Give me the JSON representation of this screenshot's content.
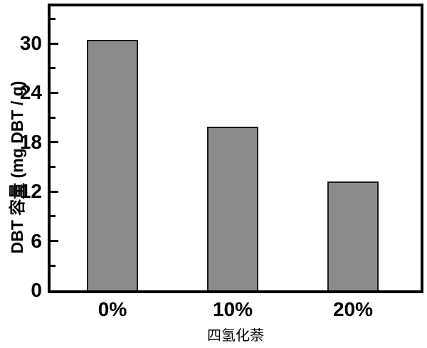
{
  "chart_data": {
    "type": "bar",
    "title": "",
    "categories": [
      "0%",
      "10%",
      "20%"
    ],
    "values": [
      30.4,
      19.9,
      13.2
    ],
    "xlabel": "四氢化萘",
    "ylabel": "DBT 容量 (mg DBT / g)",
    "ylim": [
      0,
      34.5
    ],
    "yticks": [
      0,
      6,
      12,
      18,
      24,
      30
    ],
    "minor_tick_step": 3,
    "grid": false,
    "legend": "none",
    "bar_color": "#8b8b8b",
    "bar_border_color": "#1b1b1b",
    "axis_color": "#000000",
    "background_color": "#ffffff"
  }
}
